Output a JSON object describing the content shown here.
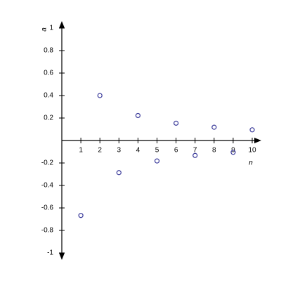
{
  "chart_data": {
    "type": "scatter",
    "x_label": "n",
    "y_label": "a",
    "x": [
      1,
      2,
      3,
      4,
      5,
      6,
      7,
      8,
      9,
      10
    ],
    "values": [
      -0.667,
      0.4,
      -0.286,
      0.222,
      -0.182,
      0.154,
      -0.133,
      0.118,
      -0.105,
      0.095
    ],
    "color": "#3a3a9a",
    "xlim": [
      0,
      10
    ],
    "ylim": [
      -1,
      1
    ],
    "xticks": [
      1,
      2,
      3,
      4,
      5,
      6,
      7,
      8,
      9,
      10
    ],
    "yticks": [
      -1,
      -0.8,
      -0.6,
      -0.4,
      -0.2,
      0.2,
      0.4,
      0.6,
      0.8,
      1
    ]
  }
}
